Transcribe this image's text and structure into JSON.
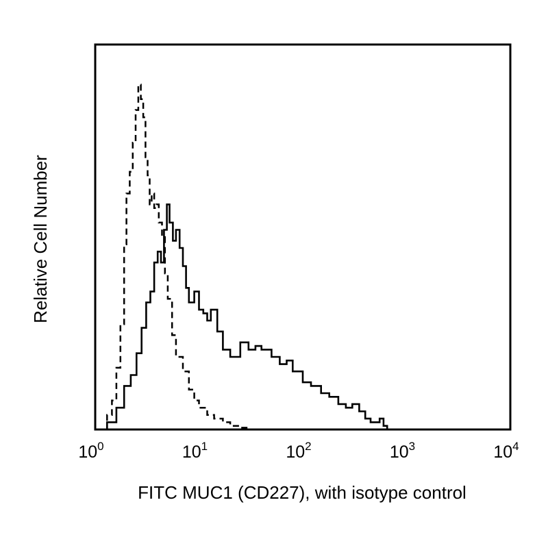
{
  "chart_data": {
    "type": "line",
    "title": "",
    "xlabel": "FITC MUC1 (CD227), with isotype control",
    "ylabel": "Relative Cell Number",
    "x_scale": "log",
    "xlim": [
      1,
      10000
    ],
    "ylim": [
      0,
      100
    ],
    "grid": false,
    "x_ticks": [
      {
        "base": "10",
        "exp": "0",
        "value": 1
      },
      {
        "base": "10",
        "exp": "1",
        "value": 10
      },
      {
        "base": "10",
        "exp": "2",
        "value": 100
      },
      {
        "base": "10",
        "exp": "3",
        "value": 1000
      },
      {
        "base": "10",
        "exp": "4",
        "value": 10000
      }
    ],
    "series": [
      {
        "style": "dashed",
        "color": "#000000",
        "x": [
          1.0,
          1.3,
          1.45,
          1.6,
          1.75,
          1.9,
          2.0,
          2.15,
          2.3,
          2.45,
          2.6,
          2.75,
          2.9,
          3.05,
          3.2,
          3.35,
          3.5,
          3.7,
          3.9,
          4.1,
          4.4,
          4.7,
          5.0,
          5.5,
          6.0,
          7.0,
          8.0,
          9.0,
          10.0,
          12.0,
          14.0,
          17.0,
          20.0,
          25.0,
          30.0
        ],
        "y": [
          0,
          4,
          8,
          17,
          29,
          51,
          65,
          71,
          79,
          88,
          95,
          91,
          86,
          75,
          70,
          62,
          65,
          61,
          62,
          57,
          53,
          43,
          36,
          26,
          20,
          16,
          11,
          8,
          6,
          4,
          3,
          2,
          1,
          0.5,
          0
        ]
      },
      {
        "style": "solid",
        "color": "#000000",
        "x": [
          1.0,
          1.3,
          1.6,
          1.9,
          2.2,
          2.5,
          2.8,
          3.1,
          3.4,
          3.7,
          4.0,
          4.3,
          4.6,
          4.9,
          5.2,
          5.6,
          6.0,
          6.5,
          7.0,
          7.5,
          8.0,
          9.0,
          10.0,
          11.0,
          12.0,
          13.0,
          15.0,
          17.0,
          20.0,
          25.0,
          30.0,
          35.0,
          40.0,
          50.0,
          60.0,
          70.0,
          80.0,
          100.0,
          120.0,
          150.0,
          180.0,
          220.0,
          260.0,
          300.0,
          350.0,
          400.0,
          450.0,
          500.0,
          550.0,
          600.0,
          650.0
        ],
        "y": [
          0,
          2,
          6,
          12,
          15,
          21,
          28,
          35,
          38,
          46,
          49,
          46,
          55,
          62,
          57,
          52,
          55,
          50,
          45,
          39,
          35,
          38,
          33,
          32,
          30,
          33,
          27,
          22,
          20,
          24,
          22,
          23,
          22,
          20,
          18,
          19,
          16,
          13,
          12,
          10,
          9,
          7,
          6,
          7,
          5,
          3,
          2,
          2,
          3,
          1,
          0
        ]
      }
    ]
  }
}
